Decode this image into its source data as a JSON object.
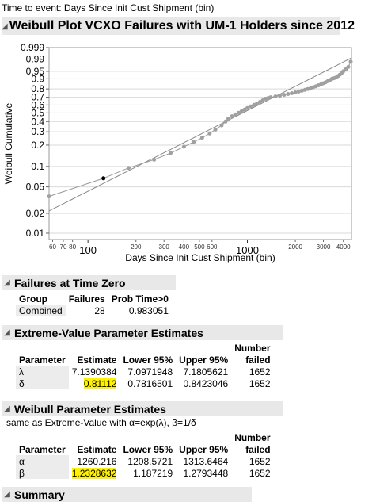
{
  "subtitle": "Time to event: Days Since Init Cust Shipment (bin)",
  "plot_header": "Weibull Plot VCXO Failures with UM-1 Holders since 2012",
  "failures_zero": {
    "title": "Failures at Time Zero",
    "headers": [
      "Group",
      "Failures",
      "Prob Time>0"
    ],
    "rows": [
      [
        "Combined",
        "28",
        "0.983051"
      ]
    ]
  },
  "extreme_value": {
    "title": "Extreme-Value Parameter Estimates",
    "headers": [
      "Parameter",
      "Estimate",
      "Lower 95%",
      "Upper 95%",
      "Number",
      "failed"
    ],
    "rows": [
      [
        "λ",
        "7.1390384",
        "7.0971948",
        "7.1805621",
        "1652"
      ],
      [
        "δ",
        "0.81112",
        "0.7816501",
        "0.8423046",
        "1652"
      ]
    ]
  },
  "weibull": {
    "title": "Weibull Parameter Estimates",
    "note": "same as Extreme-Value with α=exp(λ), β=1/δ",
    "headers": [
      "Parameter",
      "Estimate",
      "Lower 95%",
      "Upper 95%",
      "Number",
      "failed"
    ],
    "rows": [
      [
        "α",
        "1260.216",
        "1208.5721",
        "1313.6464",
        "1652"
      ],
      [
        "β",
        "1.2328632",
        "1.187219",
        "1.2793448",
        "1652"
      ]
    ]
  },
  "summary_header": "Summary",
  "colors": {
    "highlight": "#fff200",
    "points": "#a0a0a0",
    "header_bg": "#e8e8e8"
  },
  "chart_data": {
    "type": "scatter",
    "xlabel": "Days Since Init Cust Shipment (bin)",
    "ylabel": "Weibull Cumulative",
    "x_scale": "log",
    "y_scale": "weibull",
    "xlim": [
      57,
      4500
    ],
    "ylim": [
      0.008,
      0.999
    ],
    "x_major_ticks": [
      "100",
      "1000"
    ],
    "x_minor_ticks": [
      "60",
      "70",
      "80",
      "200",
      "300",
      "400",
      "500",
      "600",
      "2000",
      "3000",
      "4000"
    ],
    "y_ticks": [
      "0.01",
      "0.02",
      "0.05",
      "0.1",
      "0.2",
      "0.3",
      "0.4",
      "0.5",
      "0.6",
      "0.7",
      "0.8",
      "0.9",
      "0.95",
      "0.99",
      "0.999"
    ],
    "grid": true,
    "fit_line": {
      "alpha": 1260.216,
      "beta": 1.2328632
    },
    "series": [
      {
        "marker": "gray",
        "points": [
          [
            57,
            0.036
          ],
          [
            180,
            0.095
          ],
          [
            260,
            0.125
          ],
          [
            330,
            0.155
          ],
          [
            400,
            0.19
          ],
          [
            460,
            0.22
          ],
          [
            520,
            0.25
          ],
          [
            580,
            0.285
          ],
          [
            630,
            0.32
          ],
          [
            690,
            0.36
          ],
          [
            730,
            0.4
          ],
          [
            760,
            0.43
          ],
          [
            800,
            0.46
          ],
          [
            840,
            0.48
          ],
          [
            880,
            0.5
          ],
          [
            920,
            0.52
          ],
          [
            960,
            0.54
          ],
          [
            1000,
            0.56
          ],
          [
            1050,
            0.58
          ],
          [
            1100,
            0.6
          ],
          [
            1150,
            0.62
          ],
          [
            1200,
            0.64
          ],
          [
            1250,
            0.66
          ],
          [
            1300,
            0.68
          ],
          [
            1350,
            0.69
          ],
          [
            1400,
            0.7
          ],
          [
            1500,
            0.71
          ],
          [
            1600,
            0.72
          ],
          [
            1700,
            0.73
          ],
          [
            1800,
            0.74
          ],
          [
            1900,
            0.75
          ],
          [
            2000,
            0.76
          ],
          [
            2100,
            0.77
          ],
          [
            2200,
            0.78
          ],
          [
            2300,
            0.79
          ],
          [
            2400,
            0.8
          ],
          [
            2500,
            0.81
          ],
          [
            2600,
            0.82
          ],
          [
            2700,
            0.83
          ],
          [
            2800,
            0.84
          ],
          [
            2900,
            0.85
          ],
          [
            3000,
            0.86
          ],
          [
            3100,
            0.87
          ],
          [
            3200,
            0.88
          ],
          [
            3300,
            0.89
          ],
          [
            3400,
            0.9
          ],
          [
            3500,
            0.905
          ],
          [
            3600,
            0.91
          ],
          [
            3700,
            0.92
          ],
          [
            3800,
            0.93
          ],
          [
            3900,
            0.94
          ],
          [
            4000,
            0.95
          ],
          [
            4150,
            0.96
          ],
          [
            4300,
            0.97
          ],
          [
            4450,
            0.985
          ]
        ]
      },
      {
        "marker": "black",
        "points": [
          [
            125,
            0.067
          ]
        ]
      }
    ]
  }
}
